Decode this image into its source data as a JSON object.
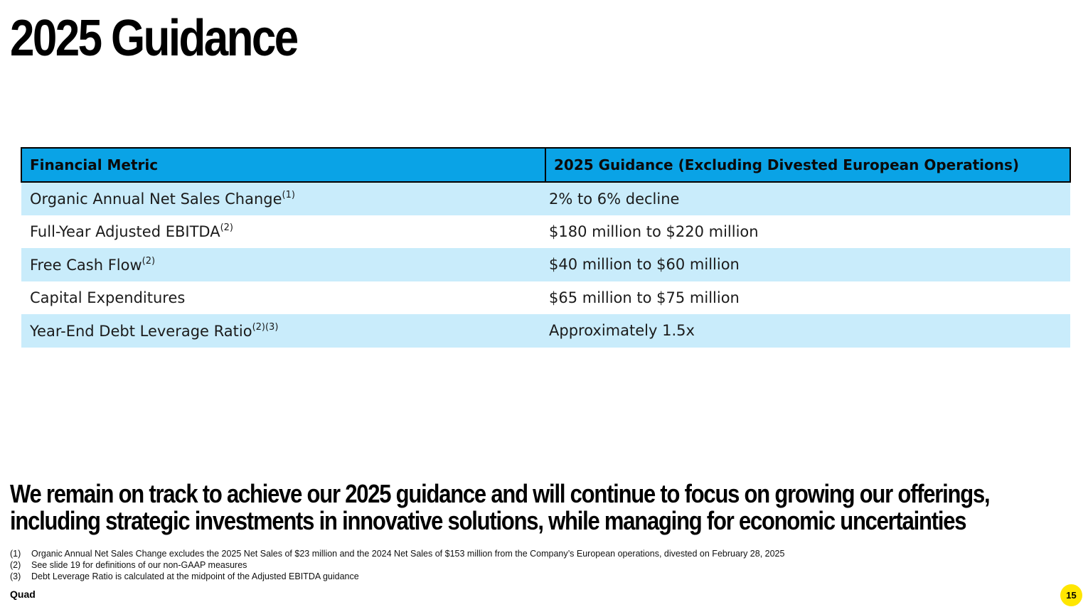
{
  "title": "2025 Guidance",
  "table": {
    "headers": [
      "Financial Metric",
      "2025 Guidance (Excluding Divested European Operations)"
    ],
    "rows": [
      {
        "metric": "Organic Annual Net Sales Change",
        "refs": "(1)",
        "guidance": "2% to 6% decline"
      },
      {
        "metric": "Full-Year Adjusted EBITDA",
        "refs": "(2)",
        "guidance": "$180 million to $220 million"
      },
      {
        "metric": "Free Cash Flow",
        "refs": "(2)",
        "guidance": "$40 million to $60 million"
      },
      {
        "metric": "Capital Expenditures",
        "refs": "",
        "guidance": "$65 million to $75 million"
      },
      {
        "metric": "Year-End Debt Leverage Ratio",
        "refs": "(2)(3)",
        "guidance": "Approximately 1.5x"
      }
    ]
  },
  "takeaway": {
    "line1": "We remain on track to achieve our 2025 guidance and will continue to focus on growing our offerings,",
    "line2": "including strategic investments in innovative solutions, while managing for economic uncertainties"
  },
  "footnotes": [
    {
      "num": "(1)",
      "text": "Organic Annual Net Sales Change excludes the 2025 Net Sales of $23 million and the 2024 Net Sales of $153 million from the Company’s European operations, divested on February 28, 2025"
    },
    {
      "num": "(2)",
      "text": "See slide 19 for definitions of our non-GAAP measures"
    },
    {
      "num": "(3)",
      "text": "Debt Leverage Ratio is calculated at the midpoint of the Adjusted EBITDA guidance"
    }
  ],
  "brand": "Quad",
  "page_number": "15",
  "colors": {
    "header_fill": "#0aa3e6",
    "row_shade": "#c9ecfb",
    "page_badge": "#ffe600"
  }
}
